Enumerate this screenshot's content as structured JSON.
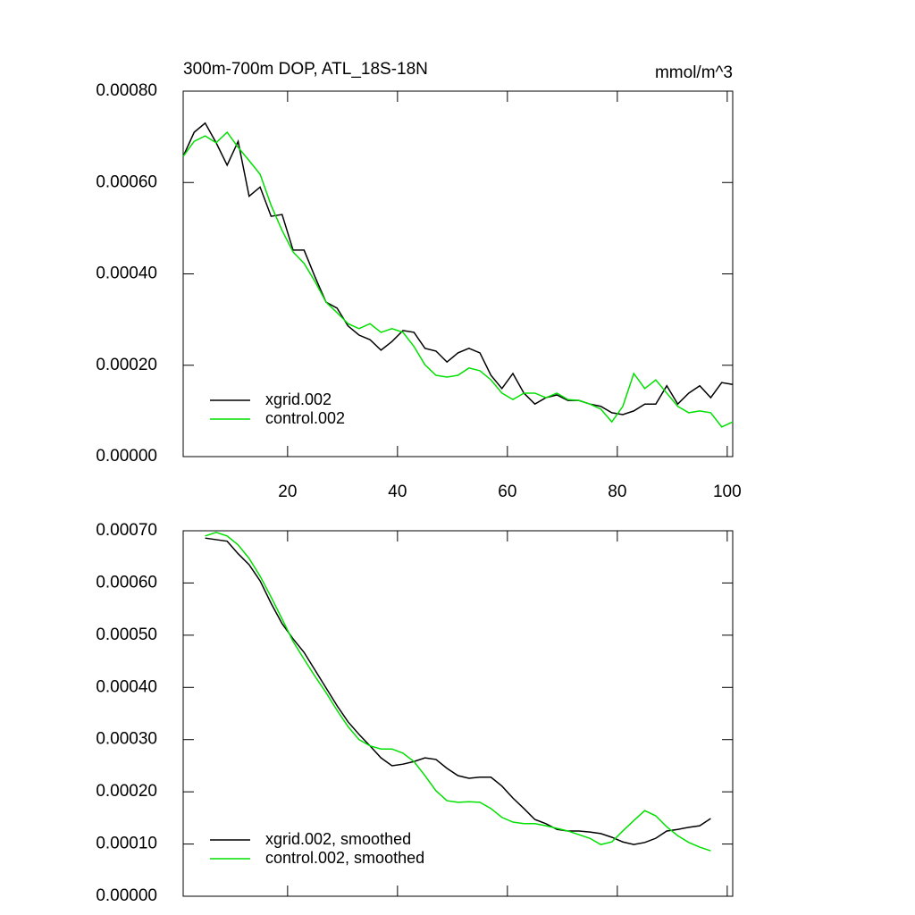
{
  "chart_data": [
    {
      "type": "line",
      "title": "300m-700m DOP, ATL_18S-18N",
      "units": "mmol/m^3",
      "x": [
        1,
        3,
        5,
        7,
        9,
        11,
        13,
        15,
        17,
        19,
        21,
        23,
        25,
        27,
        29,
        31,
        33,
        35,
        37,
        39,
        41,
        43,
        45,
        47,
        49,
        51,
        53,
        55,
        57,
        59,
        61,
        63,
        65,
        67,
        69,
        71,
        73,
        75,
        77,
        79,
        81,
        83,
        85,
        87,
        89,
        91,
        93,
        95,
        97,
        99,
        101
      ],
      "series": [
        {
          "name": "xgrid.002",
          "color": "#000000",
          "values": [
            0.000657,
            0.00071,
            0.00073,
            0.000687,
            0.000638,
            0.00069,
            0.00057,
            0.00059,
            0.000526,
            0.00053,
            0.000452,
            0.000452,
            0.000393,
            0.000338,
            0.000325,
            0.000286,
            0.000266,
            0.000256,
            0.000233,
            0.000252,
            0.000276,
            0.000272,
            0.000237,
            0.000231,
            0.000207,
            0.000227,
            0.000237,
            0.000227,
            0.000178,
            0.000149,
            0.000182,
            0.000139,
            0.000115,
            0.000129,
            0.000135,
            0.000123,
            0.000123,
            0.000115,
            0.00011,
            9.6e-05,
            9.2e-05,
            0.0001,
            0.000115,
            0.000115,
            0.000155,
            0.000115,
            0.000139,
            0.000155,
            0.000129,
            0.000162,
            0.000158
          ]
        },
        {
          "name": "control.002",
          "color": "#00e000",
          "values": [
            0.000657,
            0.00069,
            0.000702,
            0.000687,
            0.00071,
            0.000677,
            0.000648,
            0.000618,
            0.00055,
            0.000495,
            0.000448,
            0.000423,
            0.000383,
            0.000338,
            0.000315,
            0.000291,
            0.00028,
            0.000291,
            0.000272,
            0.00028,
            0.000272,
            0.000241,
            0.000201,
            0.000178,
            0.000174,
            0.000178,
            0.000194,
            0.000188,
            0.000168,
            0.000139,
            0.000125,
            0.000139,
            0.000139,
            0.000129,
            0.000139,
            0.000125,
            0.000123,
            0.000115,
            0.000104,
            7.6e-05,
            0.00011,
            0.000182,
            0.000149,
            0.000168,
            0.000139,
            0.00011,
            9.6e-05,
            0.0001,
            9.6e-05,
            6.5e-05,
            7.6e-05
          ]
        }
      ],
      "xlim": [
        1,
        101
      ],
      "xticks": [
        20,
        40,
        60,
        80,
        100
      ],
      "ylim": [
        0,
        0.0008
      ],
      "yticks": [
        {
          "value": 0,
          "label": "0.00000"
        },
        {
          "value": 0.0002,
          "label": "0.00020"
        },
        {
          "value": 0.0004,
          "label": "0.00040"
        },
        {
          "value": 0.0006,
          "label": "0.00060"
        },
        {
          "value": 0.0008,
          "label": "0.00080"
        }
      ],
      "legend": "lower left"
    },
    {
      "type": "line",
      "x": [
        5,
        7,
        9,
        11,
        13,
        15,
        17,
        19,
        21,
        23,
        25,
        27,
        29,
        31,
        33,
        35,
        37,
        39,
        41,
        43,
        45,
        47,
        49,
        51,
        53,
        55,
        57,
        59,
        61,
        63,
        65,
        67,
        69,
        71,
        73,
        75,
        77,
        79,
        81,
        83,
        85,
        87,
        89,
        91,
        93,
        95,
        97
      ],
      "series": [
        {
          "name": "xgrid.002, smoothed",
          "color": "#000000",
          "values": [
            0.000686,
            0.000683,
            0.00068,
            0.000656,
            0.000635,
            0.000604,
            0.000561,
            0.000522,
            0.000493,
            0.000467,
            0.000433,
            0.000399,
            0.000365,
            0.000334,
            0.00031,
            0.000288,
            0.000265,
            0.00025,
            0.000253,
            0.000258,
            0.000265,
            0.000262,
            0.000245,
            0.000231,
            0.000226,
            0.000228,
            0.000228,
            0.000211,
            0.000188,
            0.000168,
            0.000147,
            0.000139,
            0.000128,
            0.000125,
            0.000125,
            0.000123,
            0.00012,
            0.000113,
            0.000104,
            9.9e-05,
            0.000103,
            0.000111,
            0.000125,
            0.000128,
            0.000132,
            0.000135,
            0.000149
          ]
        },
        {
          "name": "control.002, smoothed",
          "color": "#00e000",
          "values": [
            0.00069,
            0.000697,
            0.00069,
            0.000673,
            0.000647,
            0.000613,
            0.000573,
            0.000531,
            0.000488,
            0.000454,
            0.000421,
            0.00039,
            0.000356,
            0.000325,
            0.0003,
            0.000288,
            0.000282,
            0.000282,
            0.000274,
            0.000258,
            0.000231,
            0.000202,
            0.000183,
            0.00018,
            0.000181,
            0.00018,
            0.000168,
            0.000151,
            0.000142,
            0.000139,
            0.000139,
            0.000135,
            0.00013,
            0.000125,
            0.000118,
            0.000111,
            9.9e-05,
            0.000104,
            0.000125,
            0.000145,
            0.000164,
            0.000154,
            0.000133,
            0.000116,
            0.000103,
            9.4e-05,
            8.7e-05
          ]
        }
      ],
      "xlim": [
        1,
        101
      ],
      "xticks": [
        20,
        40,
        60,
        80,
        100
      ],
      "ylim": [
        0,
        0.0007
      ],
      "yticks": [
        {
          "value": 0,
          "label": "0.00000"
        },
        {
          "value": 0.0001,
          "label": "0.00010"
        },
        {
          "value": 0.0002,
          "label": "0.00020"
        },
        {
          "value": 0.0003,
          "label": "0.00030"
        },
        {
          "value": 0.0004,
          "label": "0.00040"
        },
        {
          "value": 0.0005,
          "label": "0.00050"
        },
        {
          "value": 0.0006,
          "label": "0.00060"
        },
        {
          "value": 0.0007,
          "label": "0.00070"
        }
      ],
      "legend": "lower left"
    }
  ]
}
